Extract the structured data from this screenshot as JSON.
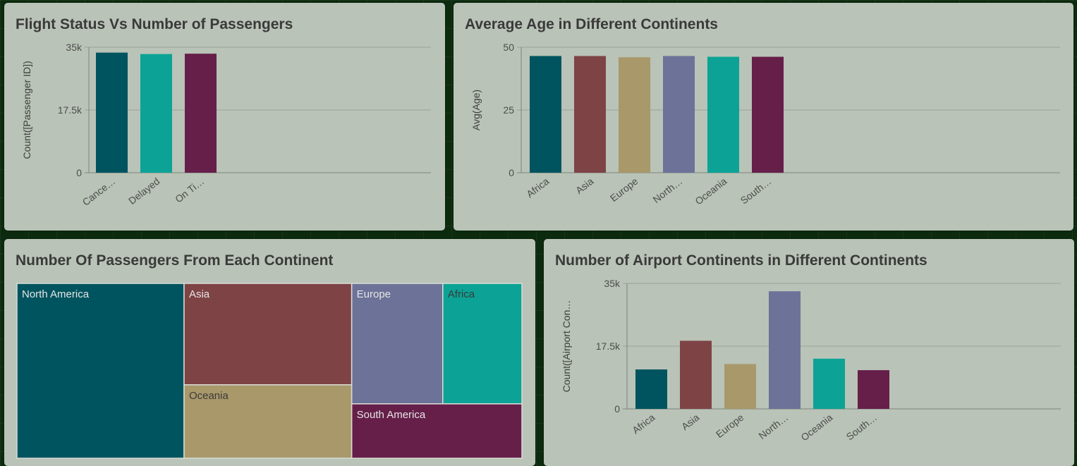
{
  "colors": {
    "teal_dark": "#00545f",
    "teal": "#0ca396",
    "plum": "#651f49",
    "rust": "#7e4345",
    "sand": "#a8986a",
    "slate": "#6c7298",
    "grid": "#9aa39a",
    "axis": "#7d857d"
  },
  "chart_data": [
    {
      "id": "flight-status",
      "type": "bar",
      "title": "Flight Status Vs Number of Passengers",
      "ylabel": "Count([Passenger ID])",
      "categories": [
        "Cance…",
        "Delayed",
        "On Ti…"
      ],
      "values": [
        33500,
        33100,
        33200
      ],
      "ylim": [
        0,
        35000
      ],
      "yticks": [
        "0",
        "17.5k",
        "35k"
      ],
      "bar_colors": [
        "#00545f",
        "#0ca396",
        "#651f49"
      ],
      "grid": true
    },
    {
      "id": "avg-age",
      "type": "bar",
      "title": "Average Age in Different Continents",
      "ylabel": "Avg(Age)",
      "categories": [
        "Africa",
        "Asia",
        "Europe",
        "North…",
        "Oceania",
        "South…"
      ],
      "values": [
        46.5,
        46.5,
        46,
        46.5,
        46.2,
        46.2
      ],
      "ylim": [
        0,
        50
      ],
      "yticks": [
        "0",
        "25",
        "50"
      ],
      "bar_colors": [
        "#00545f",
        "#7e4345",
        "#a8986a",
        "#6c7298",
        "#0ca396",
        "#651f49"
      ],
      "grid": true
    },
    {
      "id": "passengers-treemap",
      "type": "treemap",
      "title": "Number Of Passengers From Each Continent",
      "items": [
        {
          "name": "North America",
          "value": 32.5,
          "color": "#00545f",
          "label_color": "#e6e6e6"
        },
        {
          "name": "Asia",
          "value": 18.9,
          "color": "#7e4345",
          "label_color": "#e6e6e6"
        },
        {
          "name": "Oceania",
          "value": 13.7,
          "color": "#a8986a",
          "label_color": "#3a3a3a"
        },
        {
          "name": "Europe",
          "value": 12.2,
          "color": "#6c7298",
          "label_color": "#e6e6e6"
        },
        {
          "name": "Africa",
          "value": 10.6,
          "color": "#0ca396",
          "label_color": "#3a3a3a"
        },
        {
          "name": "South America",
          "value": 10.3,
          "color": "#651f49",
          "label_color": "#e6e6e6"
        }
      ]
    },
    {
      "id": "airport-continents",
      "type": "bar",
      "title": "Number of Airport Continents in Different Continents",
      "ylabel": "Count([Airport Con…",
      "categories": [
        "Africa",
        "Asia",
        "Europe",
        "North…",
        "Oceania",
        "South…"
      ],
      "values": [
        11000,
        19000,
        12500,
        32800,
        14000,
        10800
      ],
      "ylim": [
        0,
        35000
      ],
      "yticks": [
        "0",
        "17.5k",
        "35k"
      ],
      "bar_colors": [
        "#00545f",
        "#7e4345",
        "#a8986a",
        "#6c7298",
        "#0ca396",
        "#651f49"
      ],
      "grid": true
    }
  ]
}
